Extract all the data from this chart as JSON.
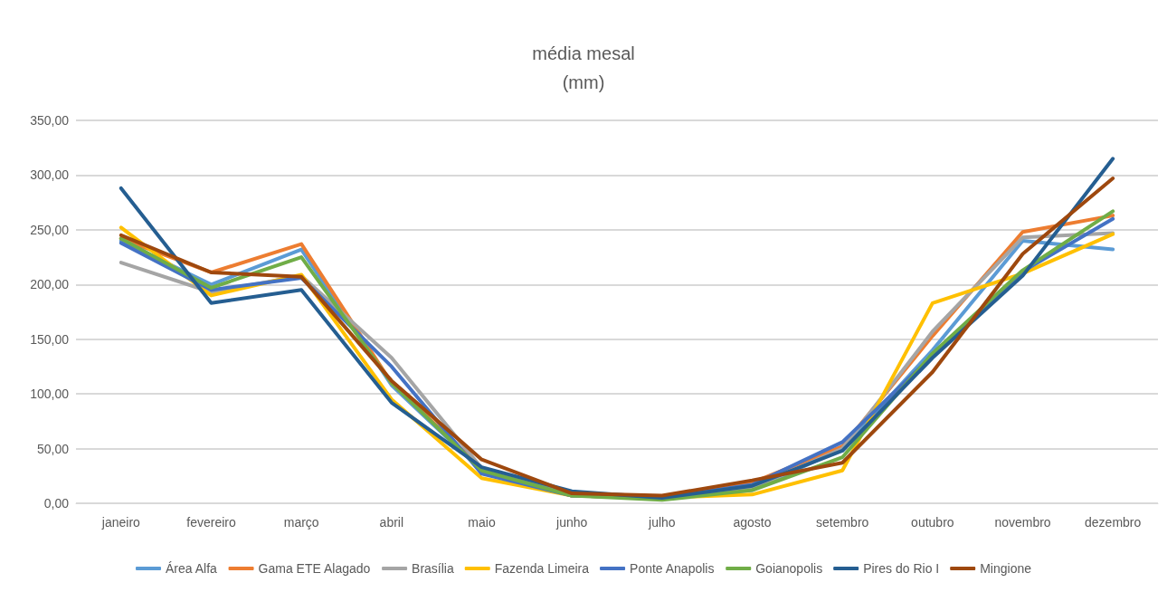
{
  "chart_data": {
    "type": "line",
    "title": "média mesal\n(mm)",
    "categories": [
      "janeiro",
      "fevereiro",
      "março",
      "abril",
      "maio",
      "junho",
      "julho",
      "agosto",
      "setembro",
      "outubro",
      "novembro",
      "dezembro"
    ],
    "series": [
      {
        "name": "Área Alfa",
        "color": "#5b9bd5",
        "values": [
          240,
          200,
          232,
          108,
          30,
          7,
          5,
          12,
          50,
          140,
          240,
          232
        ]
      },
      {
        "name": "Gama ETE Alagado",
        "color": "#ed7d31",
        "values": [
          242,
          211,
          237,
          110,
          32,
          7,
          5,
          19,
          52,
          153,
          248,
          263
        ]
      },
      {
        "name": "Brasília",
        "color": "#a5a5a5",
        "values": [
          220,
          193,
          208,
          133,
          32,
          7,
          5,
          14,
          50,
          157,
          243,
          247
        ]
      },
      {
        "name": "Fazenda Limeira",
        "color": "#ffc000",
        "values": [
          252,
          190,
          209,
          95,
          23,
          7,
          5,
          8,
          30,
          183,
          210,
          246
        ]
      },
      {
        "name": "Ponte Anapolis",
        "color": "#4472c4",
        "values": [
          238,
          195,
          206,
          125,
          27,
          7,
          5,
          17,
          56,
          135,
          212,
          260
        ]
      },
      {
        "name": "Goianopolis",
        "color": "#70ad47",
        "values": [
          242,
          197,
          225,
          110,
          30,
          7,
          3,
          12,
          42,
          137,
          213,
          267
        ]
      },
      {
        "name": "Pires do Rio I",
        "color": "#255e91",
        "values": [
          288,
          183,
          195,
          92,
          33,
          11,
          5,
          16,
          48,
          133,
          208,
          315
        ]
      },
      {
        "name": "Mingione",
        "color": "#9e480e",
        "values": [
          245,
          211,
          207,
          112,
          40,
          9,
          7,
          21,
          37,
          120,
          228,
          297
        ]
      }
    ],
    "ylim": [
      0,
      350
    ],
    "yticks": [
      {
        "value": 0,
        "label": "0,00"
      },
      {
        "value": 50,
        "label": "50,00"
      },
      {
        "value": 100,
        "label": "100,00"
      },
      {
        "value": 150,
        "label": "150,00"
      },
      {
        "value": 200,
        "label": "200,00"
      },
      {
        "value": 250,
        "label": "250,00"
      },
      {
        "value": 300,
        "label": "300,00"
      },
      {
        "value": 350,
        "label": "350,00"
      }
    ],
    "grid": "y",
    "legend": "bottom",
    "marker": "none",
    "line_style": "solid"
  }
}
